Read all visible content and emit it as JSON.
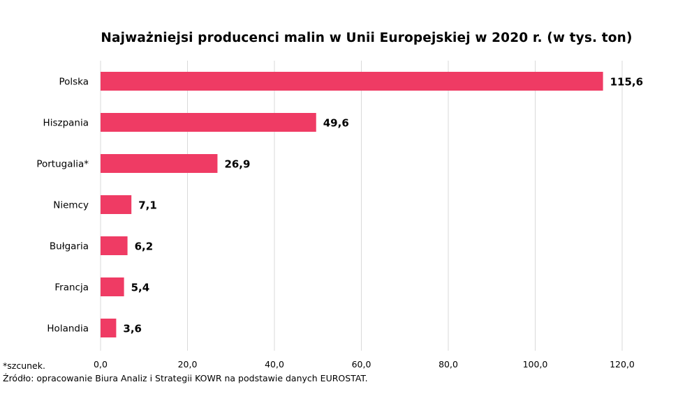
{
  "chart_data": {
    "type": "bar",
    "orientation": "horizontal",
    "title": "Najważniejsi producenci malin w Unii Europejskiej w 2020 r. (w tys. ton)",
    "categories": [
      "Polska",
      "Hiszpania",
      "Portugalia*",
      "Niemcy",
      "Bułgaria",
      "Francja",
      "Holandia"
    ],
    "values": [
      115.6,
      49.6,
      26.9,
      7.1,
      6.2,
      5.4,
      3.6
    ],
    "value_labels": [
      "115,6",
      "49,6",
      "26,9",
      "7,1",
      "6,2",
      "5,4",
      "3,6"
    ],
    "xlim": [
      0,
      120
    ],
    "x_ticks": [
      0,
      20,
      40,
      60,
      80,
      100,
      120
    ],
    "x_tick_labels": [
      "0,0",
      "20,0",
      "40,0",
      "60,0",
      "80,0",
      "100,0",
      "120,0"
    ],
    "grid": true,
    "bar_color": "#ef3b64",
    "grid_color": "#d9d9d9"
  },
  "footnotes": {
    "estimate": "*szcunek.",
    "source": "Źródło: opracowanie Biura Analiz i Strategii KOWR na podstawie danych EUROSTAT."
  }
}
